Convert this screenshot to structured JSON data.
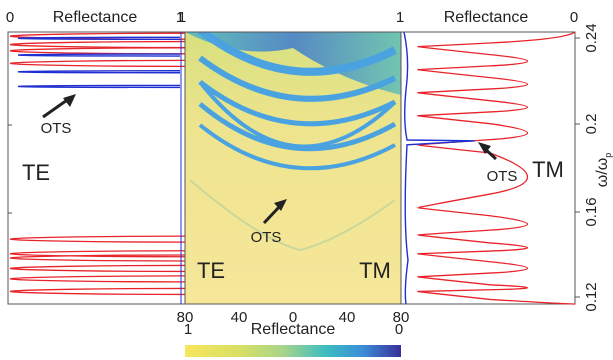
{
  "figure": {
    "left_panel": {
      "title": "Reflectance",
      "x_tick_left": "0",
      "x_tick_right": "1",
      "pol_label": "TE",
      "annotation": "OTS"
    },
    "center_panel": {
      "top_left_tick": "1",
      "top_right_tick": "1",
      "bottom_ticks": [
        "80",
        "40",
        "0",
        "40",
        "80"
      ],
      "te_label": "TE",
      "tm_label": "TM",
      "annotation": "OTS"
    },
    "right_panel": {
      "title": "Reflectance",
      "x_tick_right": "0",
      "pol_label": "TM",
      "annotation": "OTS"
    },
    "y_axis": {
      "label": "ω/ω",
      "label_sub": "p",
      "ticks": [
        "0.24",
        "0.2",
        "0.16",
        "0.12"
      ]
    },
    "colorbar": {
      "label": "Reflectance",
      "left_tick": "1",
      "right_tick": "0"
    },
    "colors": {
      "te_curve": "#e8232a",
      "tm_curve": "#e8232a",
      "ots_curve": "#1f2fd1",
      "map_background": "#f2e48c",
      "band": "#4aa3e0"
    }
  },
  "chart_data": [
    {
      "type": "line",
      "panel": "left",
      "x_range": [
        1,
        0
      ],
      "y_range": [
        0.117,
        0.247
      ],
      "series": [
        {
          "name": "TE",
          "x_desc": "reflectance",
          "points_y": [
            0.123,
            0.129,
            0.134,
            0.139,
            0.141,
            0.148,
            0.232,
            0.238,
            0.241,
            0.245
          ]
        },
        {
          "name": "OTS",
          "x_desc": "reflectance",
          "points_y": [
            0.221,
            0.228,
            0.236,
            0.244
          ]
        }
      ]
    },
    {
      "type": "heatmap",
      "panel": "center",
      "x_ticks": [
        "80",
        "40",
        "0",
        "40",
        "80"
      ],
      "y_range": [
        0.117,
        0.247
      ],
      "cmap_range": [
        1,
        0
      ]
    },
    {
      "type": "line",
      "panel": "right",
      "x_range": [
        0,
        1
      ],
      "y_range": [
        0.117,
        0.247
      ],
      "series": [
        {
          "name": "TM",
          "x_desc": "reflectance",
          "peaks_y": [
            0.123,
            0.13,
            0.141,
            0.15,
            0.163,
            0.193,
            0.207,
            0.218,
            0.229,
            0.24
          ]
        },
        {
          "name": "OTS",
          "x_desc": "reflectance",
          "points_y": [
            0.195
          ]
        }
      ]
    }
  ]
}
